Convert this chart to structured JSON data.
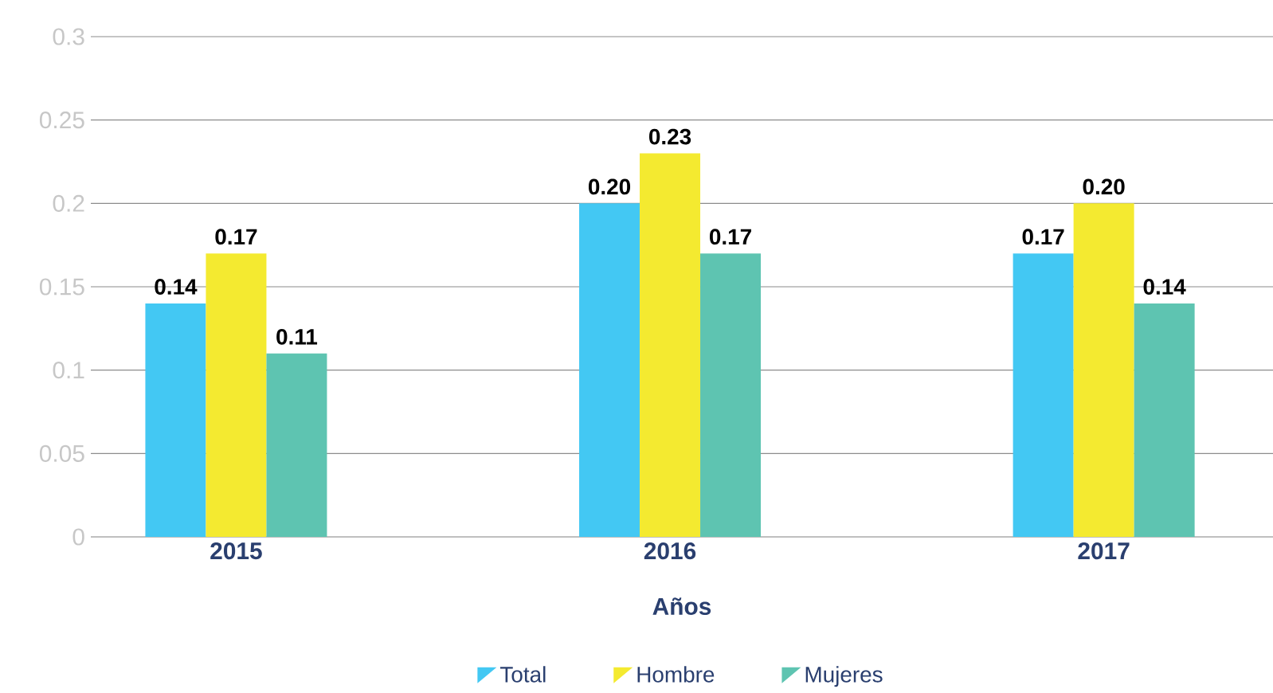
{
  "chart_data": {
    "type": "bar",
    "xlabel": "Años",
    "categories": [
      "2015",
      "2016",
      "2017"
    ],
    "series": [
      {
        "name": "Total",
        "color": "#43c8f3",
        "values": [
          0.14,
          0.2,
          0.17
        ],
        "value_labels": [
          "0.14",
          "0.20",
          "0.17"
        ]
      },
      {
        "name": "Hombre",
        "color": "#f4ea30",
        "values": [
          0.17,
          0.23,
          0.2
        ],
        "value_labels": [
          "0.17",
          "0.23",
          "0.20"
        ]
      },
      {
        "name": "Mujeres",
        "color": "#5ec4b1",
        "values": [
          0.11,
          0.17,
          0.14
        ],
        "value_labels": [
          "0.11",
          "0.17",
          "0.14"
        ]
      }
    ],
    "ylim": [
      0,
      0.3
    ],
    "yticks": [
      0,
      0.05,
      0.1,
      0.15,
      0.2,
      0.25,
      0.3
    ],
    "grid": "y",
    "legend": "bottom"
  }
}
